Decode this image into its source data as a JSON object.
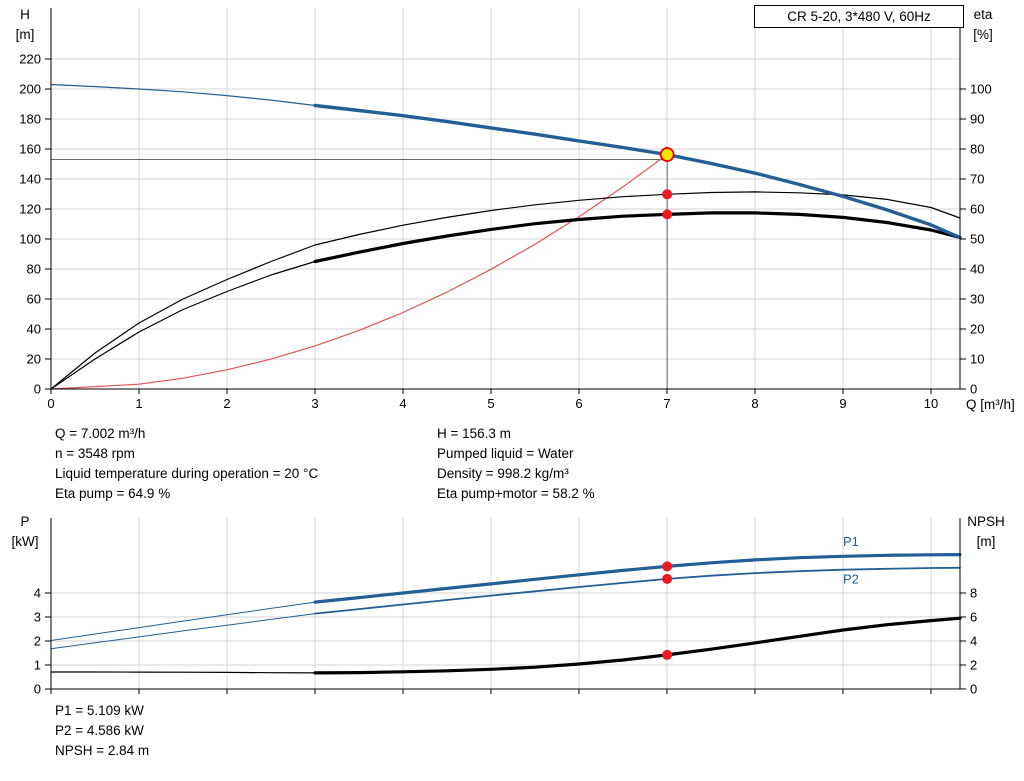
{
  "title_box": {
    "label": "CR 5-20, 3*480 V, 60Hz"
  },
  "info_top_left": [
    "Q = 7.002 m³/h",
    "n = 3548 rpm",
    "Liquid temperature during operation = 20 °C",
    "Eta pump = 64.9 %"
  ],
  "info_top_right": [
    "H = 156.3 m",
    "Pumped liquid = Water",
    "Density = 998.2 kg/m³",
    "Eta pump+motor = 58.2 %"
  ],
  "info_bottom": [
    "P1 = 5.109 kW",
    "P2 = 4.586 kW",
    "NPSH = 2.84 m"
  ],
  "colors": {
    "curve_blue": "#235f94",
    "curve_black": "#000000",
    "system_red": "#e05555",
    "dot_red": "#ec1b23",
    "duty_fill": "#ffe200",
    "duty_ring": "#e00000",
    "grid": "#d6d6d6",
    "ref": "#666666",
    "axis": "#000000"
  },
  "chart_data": [
    {
      "id": "top",
      "name": "head-efficiency-chart",
      "type": "line",
      "x": {
        "label": "Q [m³/h]",
        "min": 0,
        "max": 10.33,
        "ticks": [
          0,
          1,
          2,
          3,
          4,
          5,
          6,
          7,
          8,
          9,
          10
        ]
      },
      "y_left": {
        "title_lines": [
          "H",
          "[m]"
        ],
        "unit": "m",
        "min": 0,
        "max": 240,
        "ticks": [
          0,
          20,
          40,
          60,
          80,
          100,
          120,
          140,
          160,
          180,
          200,
          220
        ]
      },
      "y_right": {
        "title_lines": [
          "eta",
          "[%]"
        ],
        "unit": "%",
        "min": 0,
        "max": 120,
        "ticks": [
          0,
          10,
          20,
          30,
          40,
          50,
          60,
          70,
          80,
          90,
          100
        ]
      },
      "duty_point": {
        "q": 7.002,
        "h": 156.3,
        "eta_pump": 64.9,
        "eta_pump_motor": 58.2
      },
      "ref_lines": [
        {
          "orient": "h",
          "axis": "left",
          "value": 153,
          "q1": 0,
          "q2": 7.002
        },
        {
          "orient": "v",
          "axis": "left",
          "q": 7.002,
          "v1": 0,
          "v2": 162
        }
      ],
      "series": [
        {
          "name": "system-curve",
          "axis": "left",
          "color": "#e05555",
          "width": 1.2,
          "points": [
            [
              0,
              0
            ],
            [
              1,
              3.2
            ],
            [
              1.5,
              7.2
            ],
            [
              2,
              12.8
            ],
            [
              2.5,
              19.9
            ],
            [
              3,
              28.7
            ],
            [
              3.5,
              39.1
            ],
            [
              4,
              51
            ],
            [
              4.5,
              64.6
            ],
            [
              5,
              79.8
            ],
            [
              5.5,
              96.5
            ],
            [
              6,
              114.8
            ],
            [
              6.5,
              134.8
            ],
            [
              7.002,
              156.3
            ]
          ]
        },
        {
          "name": "eta-pump-curve",
          "axis": "right",
          "color": "#000000",
          "width": 1.2,
          "points": [
            [
              0,
              0
            ],
            [
              0.5,
              12
            ],
            [
              1,
              22
            ],
            [
              1.5,
              30
            ],
            [
              2,
              36.5
            ],
            [
              2.5,
              42.5
            ],
            [
              3,
              48
            ],
            [
              3.5,
              51.5
            ],
            [
              4,
              54.6
            ],
            [
              4.5,
              57.2
            ],
            [
              5,
              59.5
            ],
            [
              5.5,
              61.4
            ],
            [
              6,
              62.9
            ],
            [
              6.5,
              64.1
            ],
            [
              7,
              64.9
            ],
            [
              7.5,
              65.5
            ],
            [
              8,
              65.7
            ],
            [
              8.5,
              65.4
            ],
            [
              9,
              64.7
            ],
            [
              9.5,
              63.2
            ],
            [
              10,
              60.5
            ],
            [
              10.33,
              57
            ]
          ]
        },
        {
          "name": "eta-pump-motor-curve-lead",
          "axis": "right",
          "color": "#000000",
          "width": 1.2,
          "points": [
            [
              0,
              0
            ],
            [
              0.5,
              10
            ],
            [
              1,
              19
            ],
            [
              1.5,
              26.5
            ],
            [
              2,
              32.5
            ],
            [
              2.5,
              38
            ],
            [
              3,
              42.5
            ]
          ]
        },
        {
          "name": "eta-pump-motor-curve",
          "axis": "right",
          "color": "#000000",
          "width": 3.2,
          "points": [
            [
              3,
              42.5
            ],
            [
              3.5,
              45.6
            ],
            [
              4,
              48.5
            ],
            [
              4.5,
              51
            ],
            [
              5,
              53.2
            ],
            [
              5.5,
              55.1
            ],
            [
              6,
              56.5
            ],
            [
              6.5,
              57.6
            ],
            [
              7,
              58.2
            ],
            [
              7.5,
              58.7
            ],
            [
              8,
              58.7
            ],
            [
              8.5,
              58.2
            ],
            [
              9,
              57.2
            ],
            [
              9.5,
              55.5
            ],
            [
              10,
              53
            ],
            [
              10.33,
              50.5
            ]
          ]
        },
        {
          "name": "head-curve-lead",
          "axis": "left",
          "color": "#235f94",
          "width": 1.2,
          "points": [
            [
              0,
              203
            ],
            [
              0.5,
              201.6
            ],
            [
              1,
              200
            ],
            [
              1.5,
              198.1
            ],
            [
              2,
              195.6
            ],
            [
              2.5,
              192.6
            ],
            [
              3,
              189
            ]
          ]
        },
        {
          "name": "head-curve",
          "axis": "left",
          "color": "#235f94",
          "width": 3.4,
          "points": [
            [
              3,
              189
            ],
            [
              3.5,
              185.7
            ],
            [
              4,
              182.2
            ],
            [
              4.5,
              178.3
            ],
            [
              5,
              174.1
            ],
            [
              5.5,
              169.9
            ],
            [
              6,
              165.4
            ],
            [
              6.5,
              161
            ],
            [
              7,
              156.3
            ],
            [
              7.5,
              150.4
            ],
            [
              8,
              143.9
            ],
            [
              8.5,
              136.4
            ],
            [
              9,
              128.4
            ],
            [
              9.5,
              119.4
            ],
            [
              10,
              109.4
            ],
            [
              10.33,
              101
            ]
          ]
        }
      ],
      "markers": [
        {
          "type": "dot",
          "name": "eta-pump-duty-dot",
          "axis": "right",
          "q": 7.002,
          "v": 64.9
        },
        {
          "type": "dot",
          "name": "eta-pump-motor-duty-dot",
          "axis": "right",
          "q": 7.002,
          "v": 58.2
        },
        {
          "type": "duty",
          "name": "duty-point-marker",
          "axis": "left",
          "q": 7.002,
          "v": 156.3
        }
      ],
      "labels": []
    },
    {
      "id": "bottom",
      "name": "power-npsh-chart",
      "type": "line",
      "x": {
        "label": "",
        "min": 0,
        "max": 10.33,
        "ticks": [
          0,
          1,
          2,
          3,
          4,
          5,
          6,
          7,
          8,
          9,
          10
        ]
      },
      "y_left": {
        "title_lines": [
          "P",
          "[kW]"
        ],
        "unit": "kW",
        "min": 0,
        "max": 7,
        "ticks": [
          0,
          1,
          2,
          3,
          4
        ]
      },
      "y_right": {
        "title_lines": [
          "NPSH",
          "[m]"
        ],
        "unit": "m",
        "min": 0,
        "max": 14,
        "ticks": [
          0,
          2,
          4,
          6,
          8
        ]
      },
      "duty_point": {
        "q": 7.002,
        "p1": 5.109,
        "p2": 4.586,
        "npsh": 2.84
      },
      "ref_lines": [],
      "series": [
        {
          "name": "p2-curve-lead",
          "axis": "left",
          "color": "#235f94",
          "width": 1,
          "points": [
            [
              0,
              1.68
            ],
            [
              0.5,
              1.93
            ],
            [
              1,
              2.17
            ],
            [
              1.5,
              2.42
            ],
            [
              2,
              2.66
            ],
            [
              2.5,
              2.9
            ],
            [
              3,
              3.14
            ]
          ]
        },
        {
          "name": "p2-curve",
          "axis": "left",
          "color": "#235f94",
          "width": 1.8,
          "points": [
            [
              3,
              3.14
            ],
            [
              3.5,
              3.33
            ],
            [
              4,
              3.52
            ],
            [
              4.5,
              3.71
            ],
            [
              5,
              3.89
            ],
            [
              5.5,
              4.07
            ],
            [
              6,
              4.25
            ],
            [
              6.5,
              4.42
            ],
            [
              7,
              4.586
            ],
            [
              7.5,
              4.72
            ],
            [
              8,
              4.83
            ],
            [
              8.5,
              4.91
            ],
            [
              9,
              4.97
            ],
            [
              9.5,
              5.01
            ],
            [
              10,
              5.04
            ],
            [
              10.33,
              5.05
            ]
          ]
        },
        {
          "name": "p1-curve-lead",
          "axis": "left",
          "color": "#235f94",
          "width": 1,
          "points": [
            [
              0,
              2.02
            ],
            [
              0.5,
              2.29
            ],
            [
              1,
              2.56
            ],
            [
              1.5,
              2.83
            ],
            [
              2,
              3.09
            ],
            [
              2.5,
              3.36
            ],
            [
              3,
              3.62
            ]
          ]
        },
        {
          "name": "p1-curve",
          "axis": "left",
          "color": "#235f94",
          "width": 3.2,
          "points": [
            [
              3,
              3.62
            ],
            [
              3.5,
              3.81
            ],
            [
              4,
              4.0
            ],
            [
              4.5,
              4.19
            ],
            [
              5,
              4.38
            ],
            [
              5.5,
              4.57
            ],
            [
              6,
              4.76
            ],
            [
              6.5,
              4.94
            ],
            [
              7,
              5.109
            ],
            [
              7.5,
              5.26
            ],
            [
              8,
              5.38
            ],
            [
              8.5,
              5.47
            ],
            [
              9,
              5.53
            ],
            [
              9.5,
              5.57
            ],
            [
              10,
              5.59
            ],
            [
              10.33,
              5.6
            ]
          ]
        },
        {
          "name": "npsh-curve-lead",
          "axis": "right",
          "color": "#000000",
          "width": 1.2,
          "points": [
            [
              0,
              1.42
            ],
            [
              0.5,
              1.42
            ],
            [
              1,
              1.41
            ],
            [
              1.5,
              1.4
            ],
            [
              2,
              1.38
            ],
            [
              2.5,
              1.36
            ],
            [
              3,
              1.34
            ]
          ]
        },
        {
          "name": "npsh-curve",
          "axis": "right",
          "color": "#000000",
          "width": 3.2,
          "points": [
            [
              3,
              1.34
            ],
            [
              3.5,
              1.37
            ],
            [
              4,
              1.43
            ],
            [
              4.5,
              1.52
            ],
            [
              5,
              1.64
            ],
            [
              5.5,
              1.82
            ],
            [
              6,
              2.08
            ],
            [
              6.5,
              2.42
            ],
            [
              7,
              2.84
            ],
            [
              7.5,
              3.32
            ],
            [
              8,
              3.84
            ],
            [
              8.5,
              4.38
            ],
            [
              9,
              4.92
            ],
            [
              9.5,
              5.36
            ],
            [
              10,
              5.7
            ],
            [
              10.33,
              5.9
            ]
          ]
        }
      ],
      "markers": [
        {
          "type": "dot",
          "name": "p1-duty-dot",
          "axis": "left",
          "q": 7.002,
          "v": 5.109
        },
        {
          "type": "dot",
          "name": "p2-duty-dot",
          "axis": "left",
          "q": 7.002,
          "v": 4.586
        },
        {
          "type": "dot",
          "name": "npsh-duty-dot",
          "axis": "right",
          "q": 7.002,
          "v": 2.84
        }
      ],
      "labels": [
        {
          "name": "p1-curve-label",
          "text": "P1",
          "axis": "left",
          "q": 9.0,
          "v": 5.95,
          "color": "#235f94"
        },
        {
          "name": "p2-curve-label",
          "text": "P2",
          "axis": "left",
          "q": 9.0,
          "v": 4.4,
          "color": "#235f94"
        }
      ]
    }
  ]
}
